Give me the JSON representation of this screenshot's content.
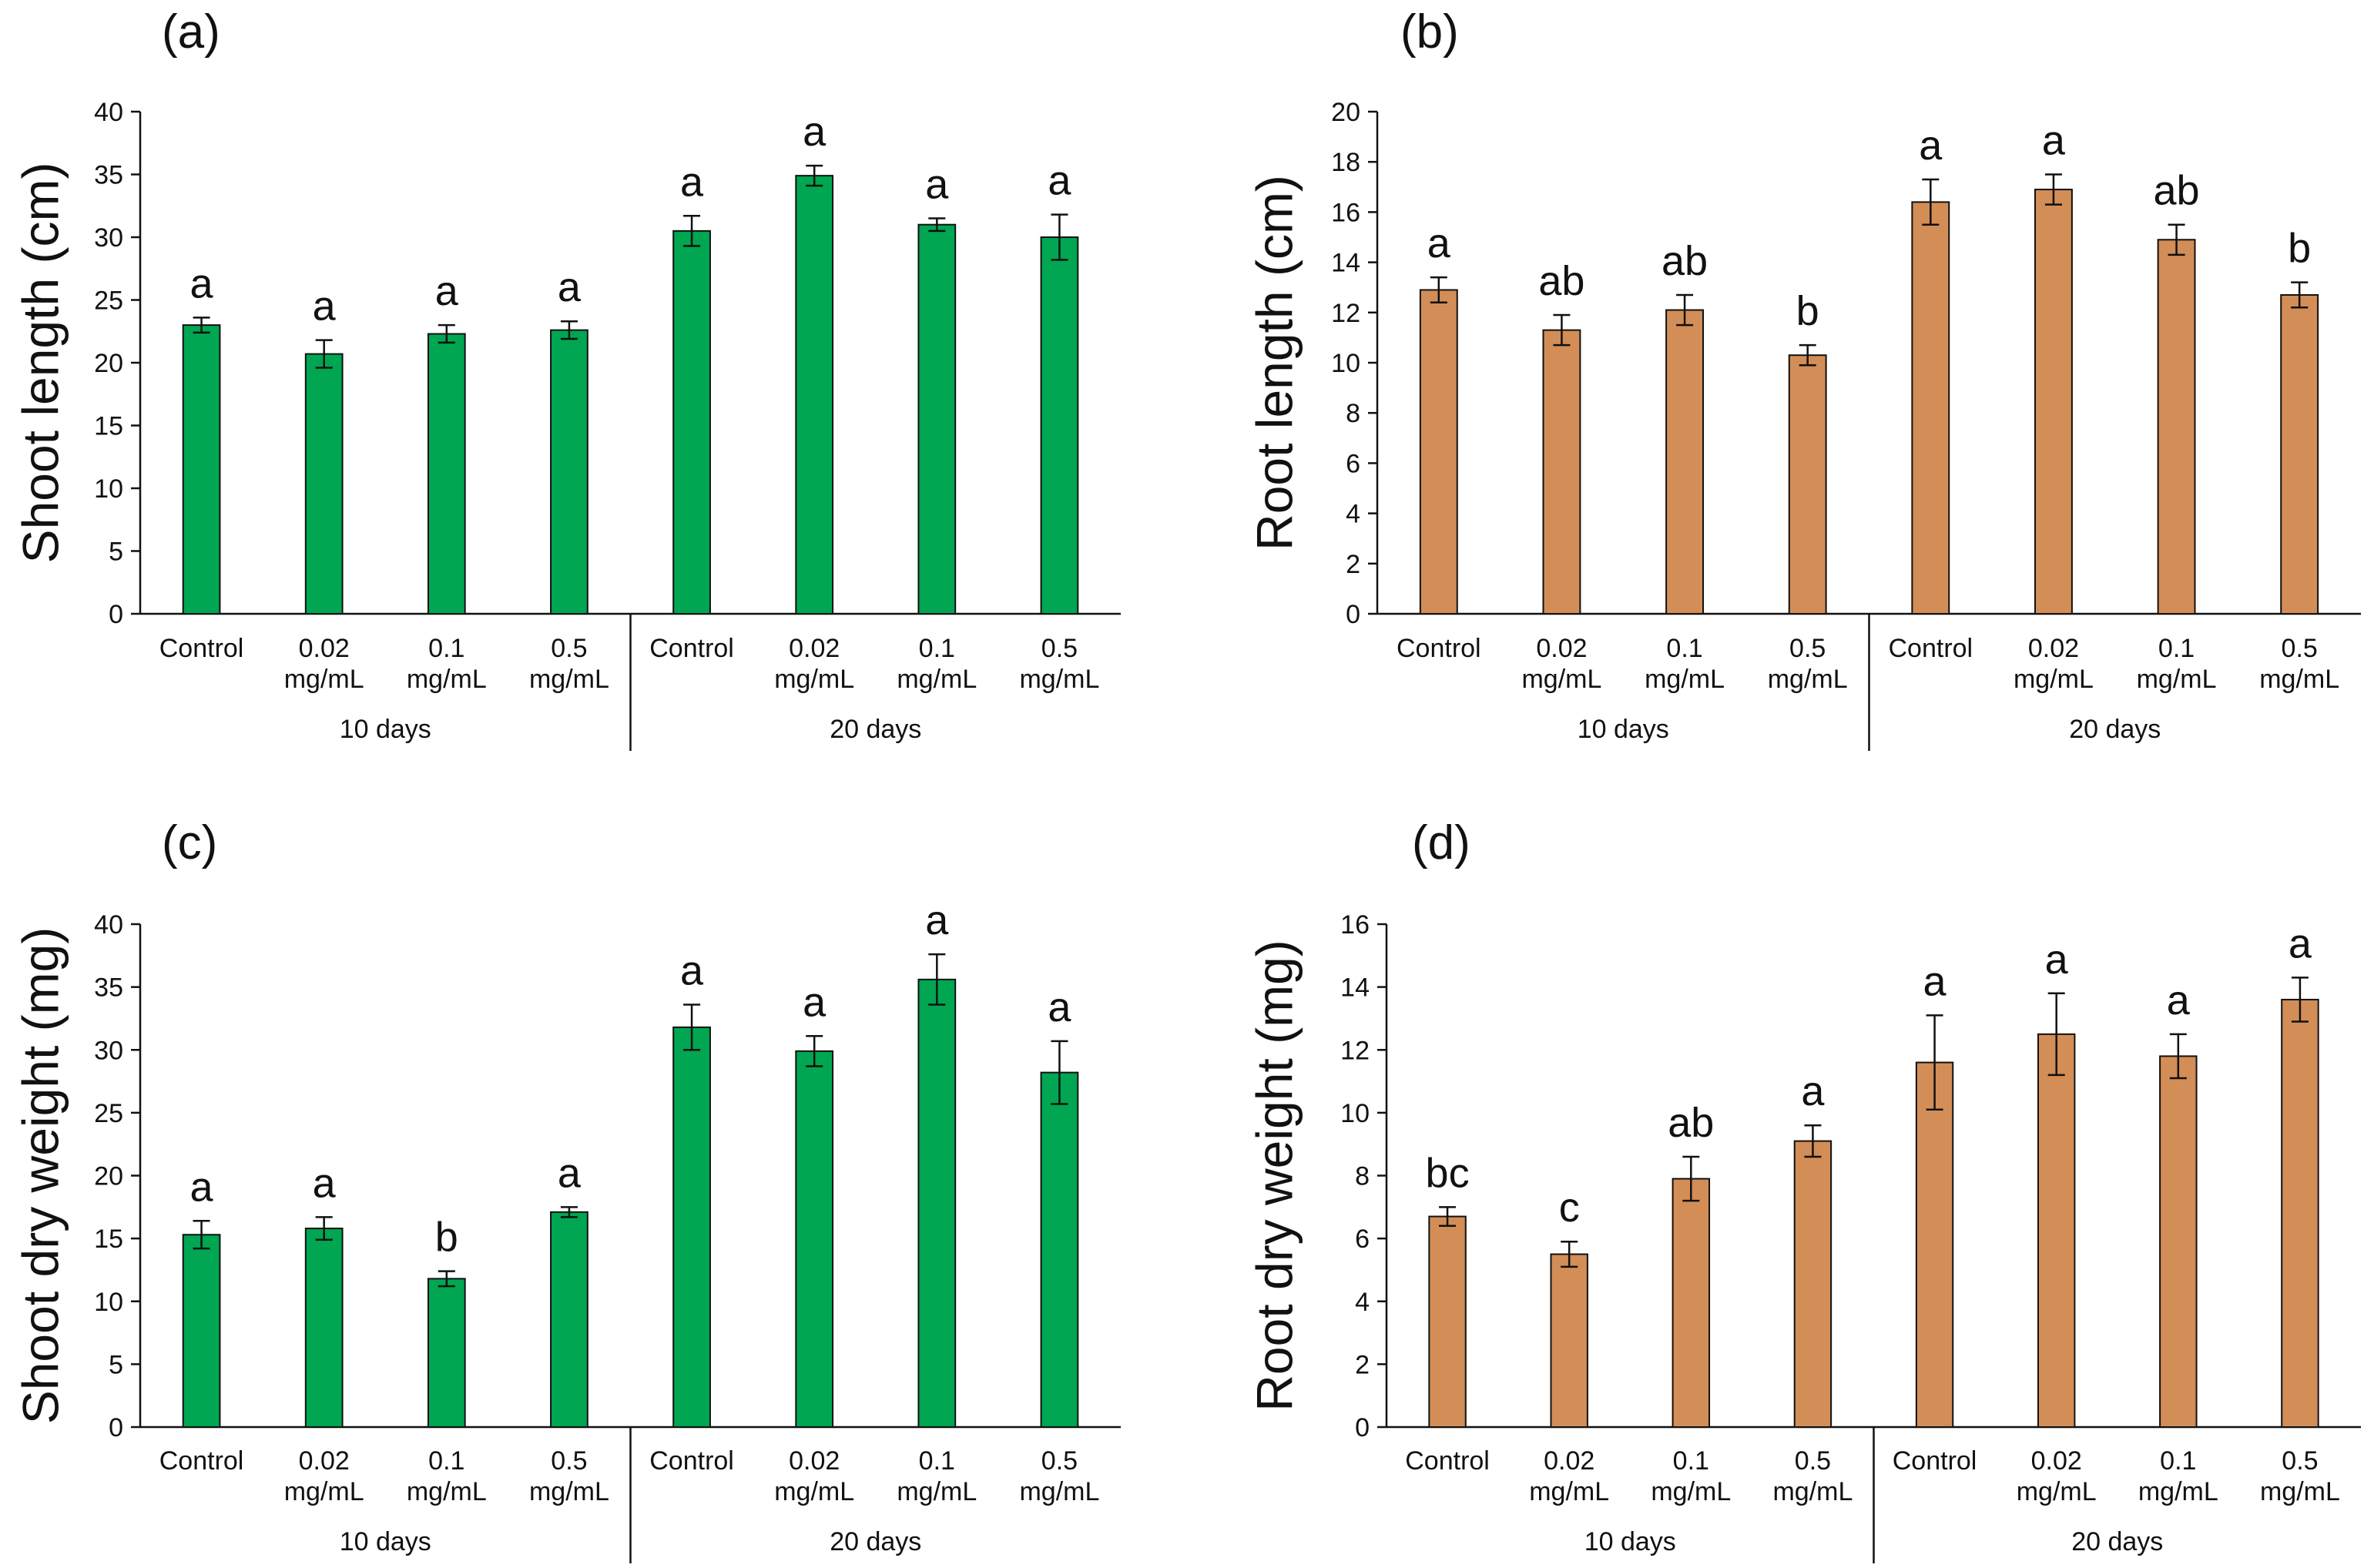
{
  "colors": {
    "green": "#00A651",
    "orange": "#D38D56",
    "axis": "#111111"
  },
  "group_labels": [
    "10 days",
    "20 days"
  ],
  "categories": [
    {
      "line1": "Control",
      "line2": ""
    },
    {
      "line1": "0.02",
      "line2": "mg/mL"
    },
    {
      "line1": "0.1",
      "line2": "mg/mL"
    },
    {
      "line1": "0.5",
      "line2": "mg/mL"
    },
    {
      "line1": "Control",
      "line2": ""
    },
    {
      "line1": "0.02",
      "line2": "mg/mL"
    },
    {
      "line1": "0.1",
      "line2": "mg/mL"
    },
    {
      "line1": "0.5",
      "line2": "mg/mL"
    }
  ],
  "chart_data": [
    {
      "panel": "(a)",
      "type": "bar",
      "ylabel": "Shoot length (cm)",
      "ylim": [
        0,
        40
      ],
      "yticks": [
        0,
        5,
        10,
        15,
        20,
        25,
        30,
        35,
        40
      ],
      "color": "green",
      "values": [
        23.0,
        20.7,
        22.3,
        22.6,
        30.5,
        34.9,
        31.0,
        30.0
      ],
      "errors": [
        0.6,
        1.1,
        0.7,
        0.7,
        1.2,
        0.8,
        0.5,
        1.8
      ],
      "letters": [
        "a",
        "a",
        "a",
        "a",
        "a",
        "a",
        "a",
        "a"
      ]
    },
    {
      "panel": "(b)",
      "type": "bar",
      "ylabel": "Root length (cm)",
      "ylim": [
        0,
        20
      ],
      "yticks": [
        0,
        2,
        4,
        6,
        8,
        10,
        12,
        14,
        16,
        18,
        20
      ],
      "color": "orange",
      "values": [
        12.9,
        11.3,
        12.1,
        10.3,
        16.4,
        16.9,
        14.9,
        12.7
      ],
      "errors": [
        0.5,
        0.6,
        0.6,
        0.4,
        0.9,
        0.6,
        0.6,
        0.5
      ],
      "letters": [
        "a",
        "ab",
        "ab",
        "b",
        "a",
        "a",
        "ab",
        "b"
      ]
    },
    {
      "panel": "(c)",
      "type": "bar",
      "ylabel": "Shoot dry weight (mg)",
      "ylim": [
        0,
        40
      ],
      "yticks": [
        0,
        5,
        10,
        15,
        20,
        25,
        30,
        35,
        40
      ],
      "color": "green",
      "values": [
        15.3,
        15.8,
        11.8,
        17.1,
        31.8,
        29.9,
        35.6,
        28.2
      ],
      "errors": [
        1.1,
        0.9,
        0.6,
        0.4,
        1.8,
        1.2,
        2.0,
        2.5
      ],
      "letters": [
        "a",
        "a",
        "b",
        "a",
        "a",
        "a",
        "a",
        "a"
      ]
    },
    {
      "panel": "(d)",
      "type": "bar",
      "ylabel": "Root dry weight (mg)",
      "ylim": [
        0,
        16
      ],
      "yticks": [
        0,
        2,
        4,
        6,
        8,
        10,
        12,
        14,
        16
      ],
      "color": "orange",
      "values": [
        6.7,
        5.5,
        7.9,
        9.1,
        11.6,
        12.5,
        11.8,
        13.6
      ],
      "errors": [
        0.3,
        0.4,
        0.7,
        0.5,
        1.5,
        1.3,
        0.7,
        0.7
      ],
      "letters": [
        "bc",
        "c",
        "ab",
        "a",
        "a",
        "a",
        "a",
        "a"
      ]
    }
  ]
}
